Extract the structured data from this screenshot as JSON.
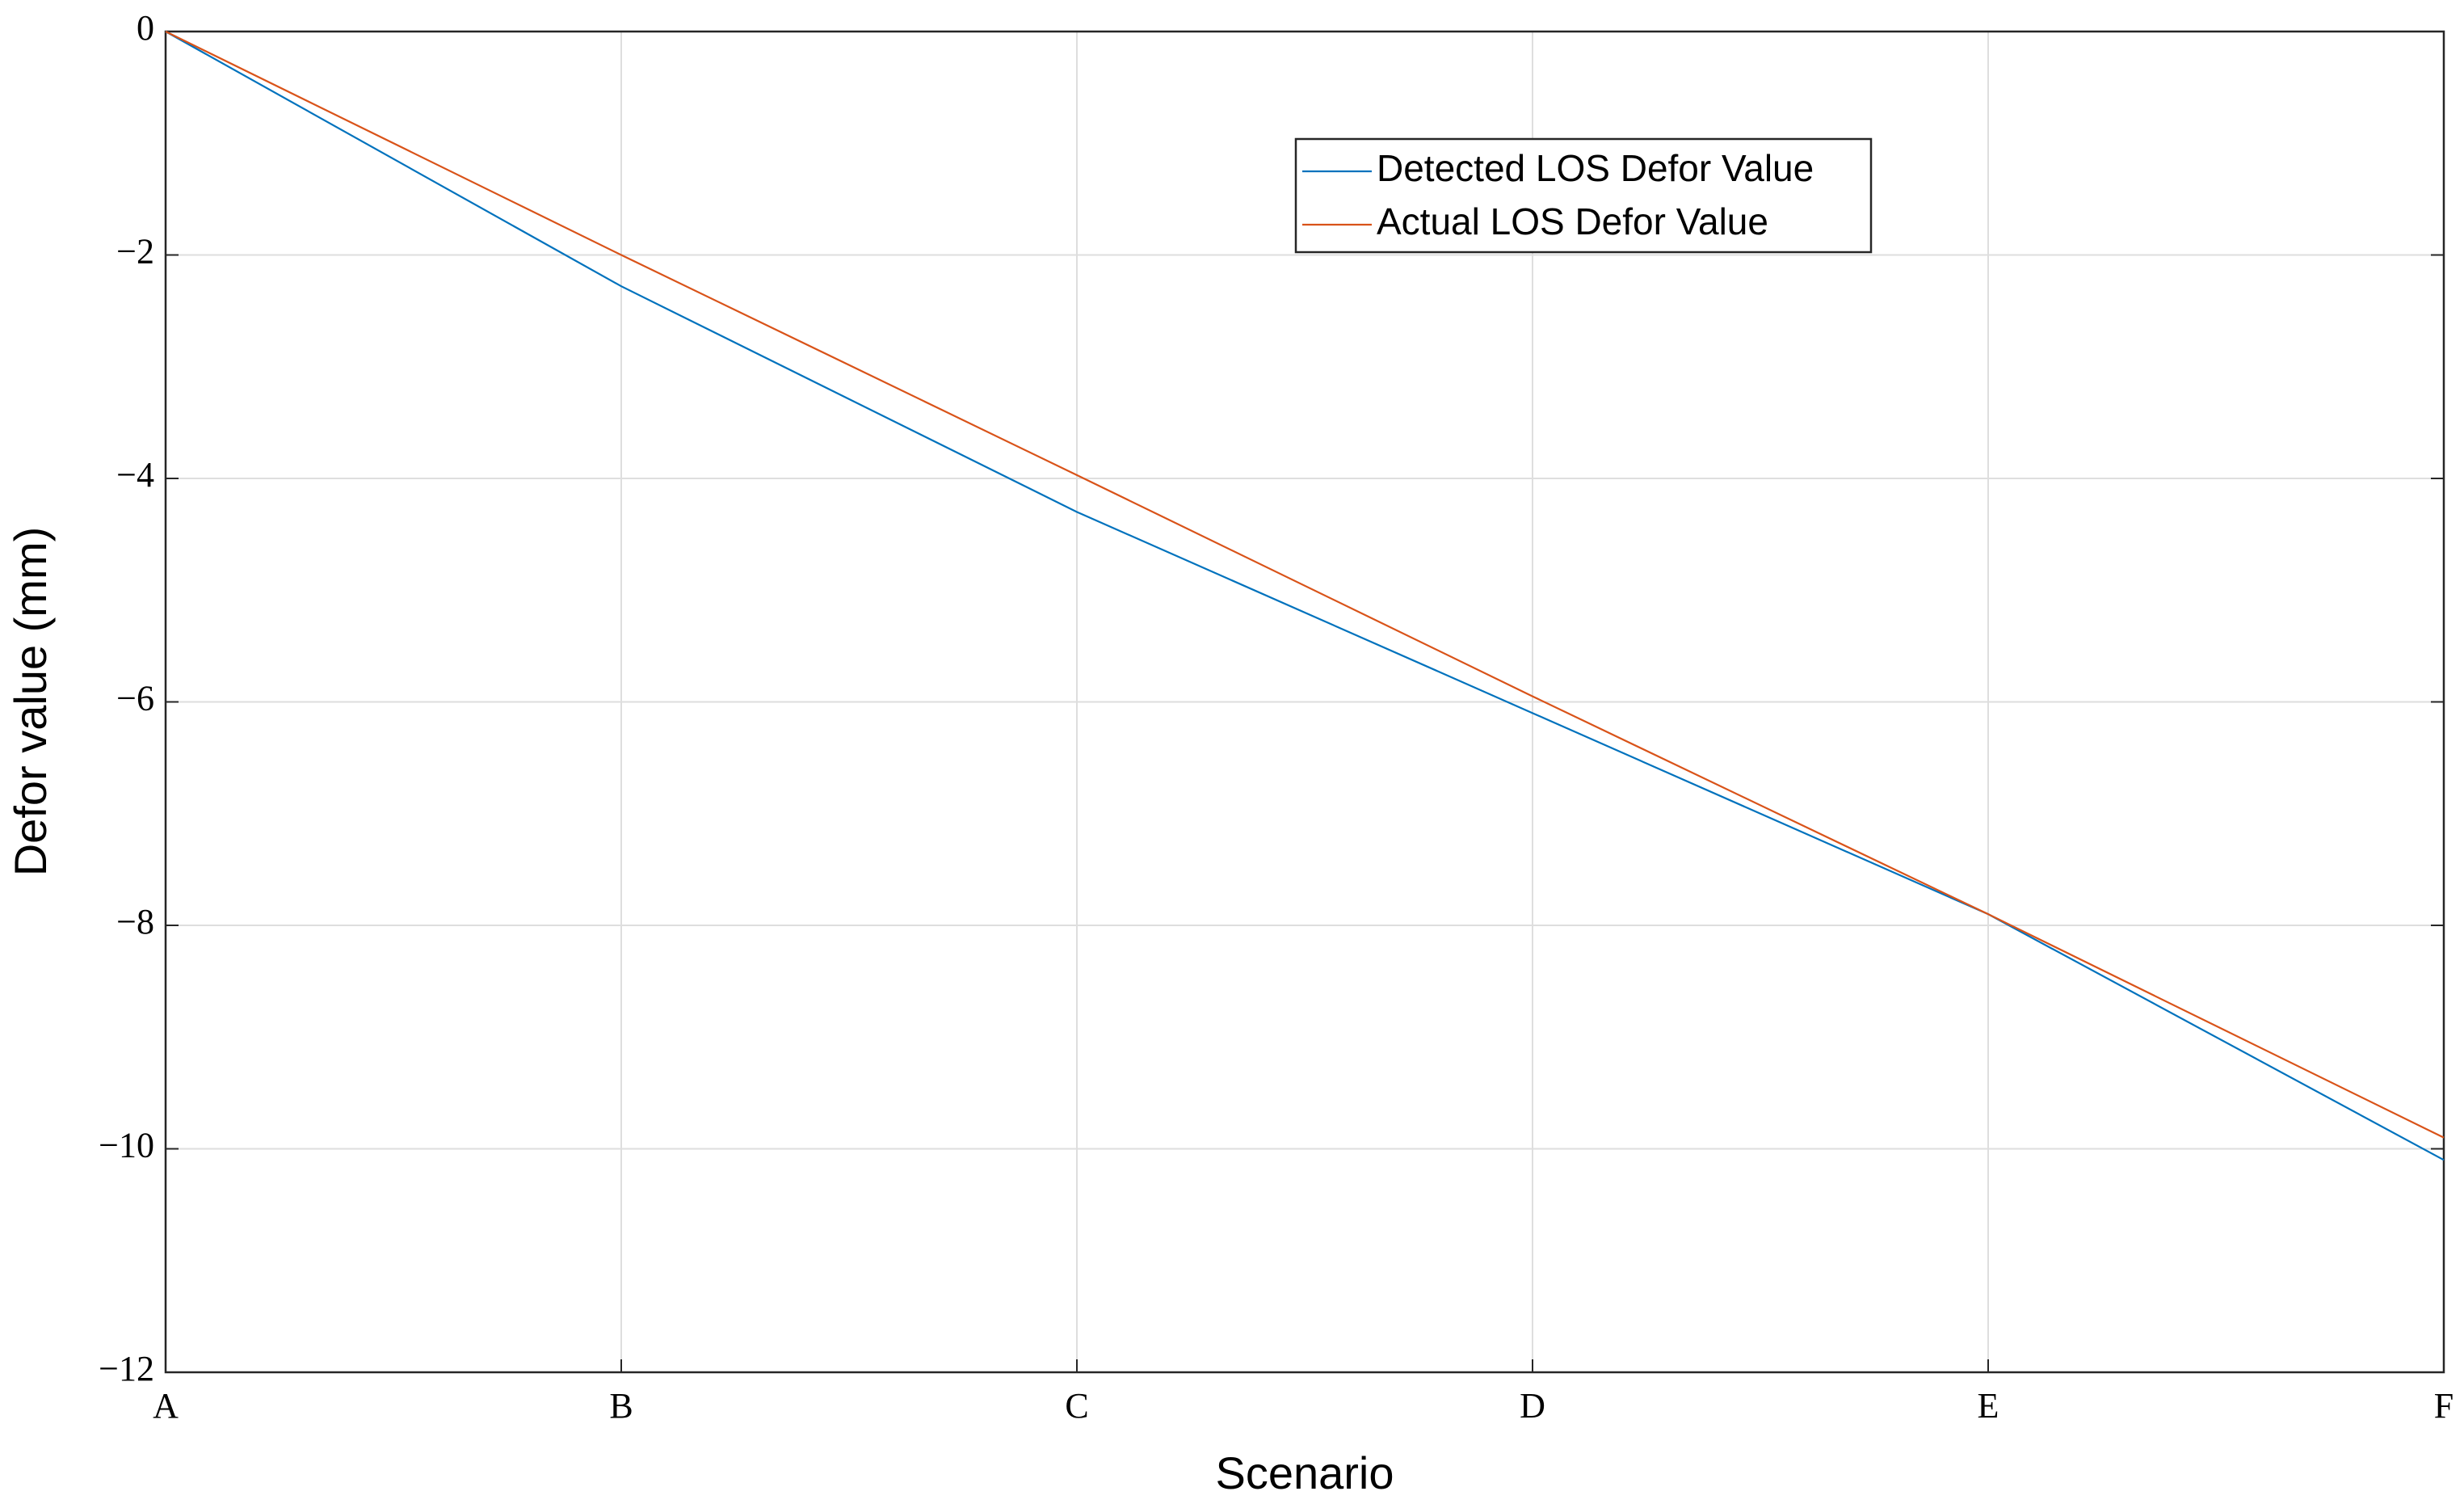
{
  "chart_data": {
    "type": "line",
    "x_label": "Scenario",
    "y_label": "Defor value (mm)",
    "categories": [
      "A",
      "B",
      "C",
      "D",
      "E",
      "F"
    ],
    "series": [
      {
        "name": "Detected LOS Defor Value",
        "color": "#0072bd",
        "values": [
          0,
          -2.28,
          -4.3,
          -6.1,
          -7.9,
          -10.1
        ]
      },
      {
        "name": "Actual LOS Defor Value",
        "color": "#d95319",
        "values": [
          0,
          -2,
          -3.97,
          -5.95,
          -7.9,
          -9.9
        ]
      }
    ],
    "ylim": [
      -12,
      0
    ],
    "yticks": [
      {
        "value": -12,
        "label": "−12"
      },
      {
        "value": -10,
        "label": "−10"
      },
      {
        "value": -8,
        "label": "−8"
      },
      {
        "value": -6,
        "label": "−6"
      },
      {
        "value": -4,
        "label": "−4"
      },
      {
        "value": -2,
        "label": "−2"
      },
      0
    ],
    "grid": true,
    "legend": "upper right"
  }
}
